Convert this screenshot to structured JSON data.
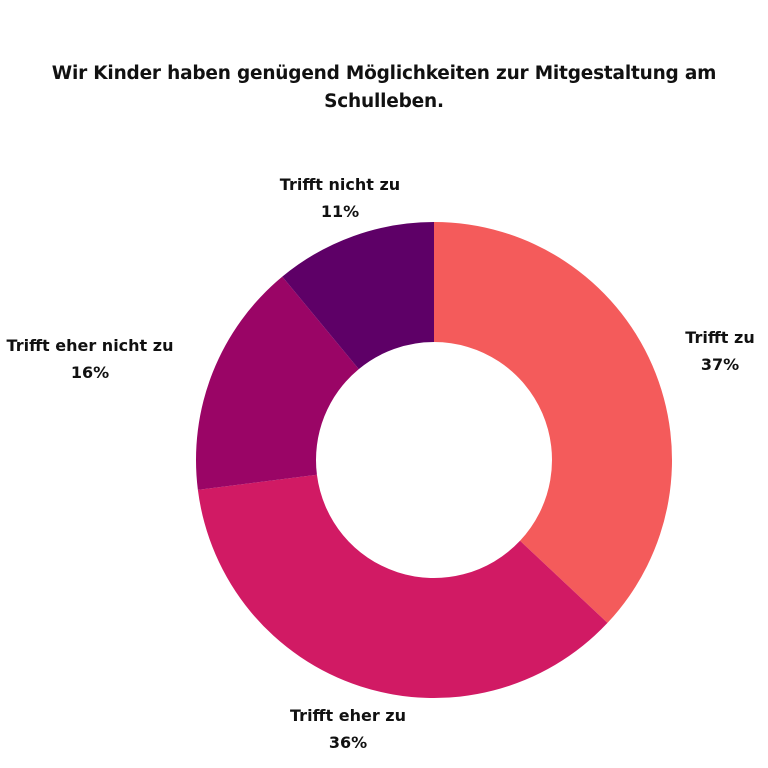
{
  "chart_data": {
    "type": "pie",
    "donut": true,
    "title_lines": [
      "Wir Kinder haben genügend Möglichkeiten zur Mitgestaltung am",
      "Schulleben."
    ],
    "slices": [
      {
        "label": "Trifft zu",
        "value": 37,
        "value_label": "37%",
        "color": "#F45B5B"
      },
      {
        "label": "Trifft eher zu",
        "value": 36,
        "value_label": "36%",
        "color": "#D11A64"
      },
      {
        "label": "Trifft eher nicht zu",
        "value": 16,
        "value_label": "16%",
        "color": "#9A0566"
      },
      {
        "label": "Trifft nicht zu",
        "value": 11,
        "value_label": "11%",
        "color": "#5E0067"
      }
    ],
    "start": "top",
    "direction": "clockwise",
    "legend": "none"
  }
}
